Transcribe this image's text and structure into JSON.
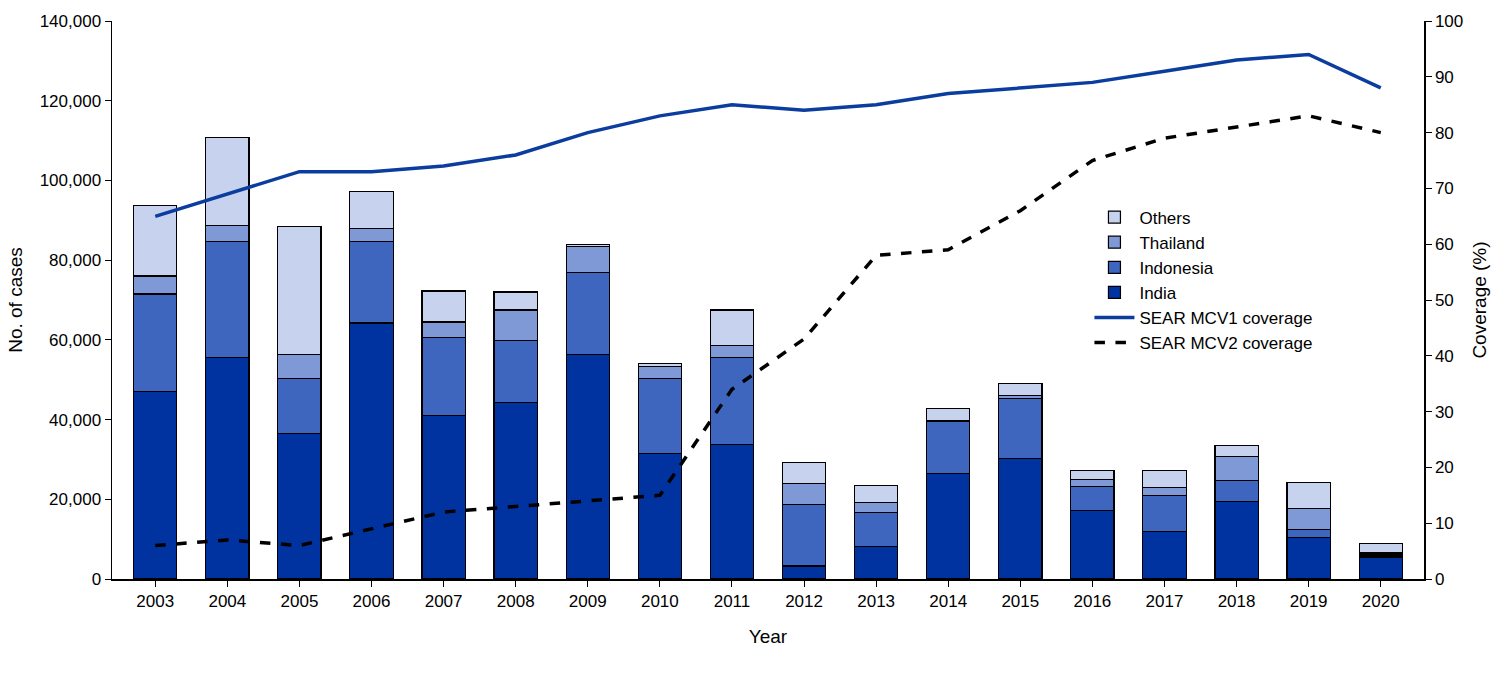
{
  "chart_data": {
    "type": "bar",
    "stacked": true,
    "grid": false,
    "legend": "upper right",
    "x_label": "Year",
    "y_label": "No. of cases",
    "y2_label": "Coverage (%)",
    "categories": [
      "2003",
      "2004",
      "2005",
      "2006",
      "2007",
      "2008",
      "2009",
      "2010",
      "2011",
      "2012",
      "2013",
      "2014",
      "2015",
      "2016",
      "2017",
      "2018",
      "2019",
      "2020"
    ],
    "ylim": [
      0,
      140000
    ],
    "yticks": [
      0,
      {
        "value": 20000,
        "label": "20,000"
      },
      {
        "value": 40000,
        "label": "40,000"
      },
      {
        "value": 60000,
        "label": "60,000"
      },
      {
        "value": 80000,
        "label": "80,000"
      },
      {
        "value": 100000,
        "label": "100,000"
      },
      {
        "value": 120000,
        "label": "120,000"
      },
      {
        "value": 140000,
        "label": "140,000"
      }
    ],
    "y2lim": [
      0,
      100
    ],
    "y2ticks": [
      0,
      10,
      20,
      30,
      40,
      50,
      60,
      70,
      80,
      90,
      100
    ],
    "series": [
      {
        "name": "India",
        "type": "bar",
        "color": "#0033a0",
        "values": [
          47000,
          55500,
          36500,
          64250,
          41000,
          44250,
          56250,
          31500,
          33750,
          3250,
          8250,
          26500,
          30250,
          17250,
          12000,
          19500,
          10500,
          5500
        ]
      },
      {
        "name": "Indonesia",
        "type": "bar",
        "color": "#3f66bf",
        "values": [
          24500,
          29250,
          13750,
          20500,
          19500,
          15500,
          20750,
          18750,
          21750,
          15500,
          8500,
          13000,
          15000,
          6000,
          9000,
          5250,
          2000,
          500
        ]
      },
      {
        "name": "Thailand",
        "type": "bar",
        "color": "#7f99d6",
        "values": [
          4500,
          4000,
          6000,
          3250,
          4000,
          7750,
          6500,
          3000,
          3000,
          5250,
          2500,
          250,
          750,
          1750,
          2000,
          6000,
          5250,
          500
        ]
      },
      {
        "name": "Others",
        "type": "bar",
        "color": "#c7d2ee",
        "values": [
          17750,
          22000,
          32250,
          9250,
          7750,
          4500,
          500,
          750,
          9000,
          5250,
          4250,
          3000,
          3000,
          2250,
          4250,
          2750,
          6500,
          2500
        ]
      },
      {
        "name": "SEAR MCV1 coverage",
        "type": "line",
        "axis": "y2",
        "color": "#0a3d9e",
        "line_style": "solid",
        "values": [
          65,
          69,
          73,
          73,
          74,
          76,
          80,
          83,
          85,
          84,
          85,
          87,
          88,
          89,
          91,
          93,
          94,
          88
        ]
      },
      {
        "name": "SEAR MCV2 coverage",
        "type": "line",
        "axis": "y2",
        "color": "#000000",
        "line_style": "dash",
        "values": [
          6,
          7,
          6,
          9,
          12,
          13,
          14,
          15,
          34,
          43,
          58,
          59,
          66,
          75,
          79,
          81,
          83,
          80
        ]
      }
    ]
  }
}
